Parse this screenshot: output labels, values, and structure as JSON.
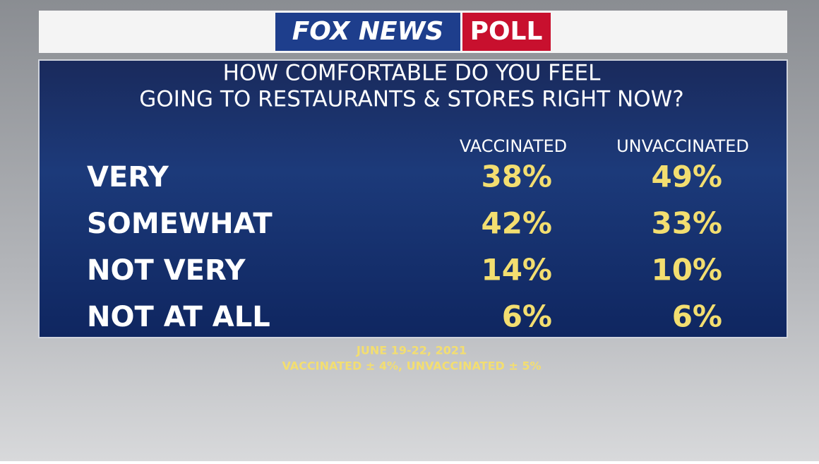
{
  "header": {
    "brand": "FOX NEWS",
    "badge": "POLL"
  },
  "title": [
    "HOW COMFORTABLE DO YOU FEEL",
    "GOING TO RESTAURANTS & STORES RIGHT NOW?"
  ],
  "table": {
    "columns": [
      "VACCINATED",
      "UNVACCINATED"
    ],
    "rows": [
      {
        "label": "VERY",
        "values": [
          "38%",
          "49%"
        ]
      },
      {
        "label": "SOMEWHAT",
        "values": [
          "42%",
          "33%"
        ]
      },
      {
        "label": "NOT VERY",
        "values": [
          "14%",
          "10%"
        ]
      },
      {
        "label": "NOT AT ALL",
        "values": [
          "6%",
          "6%"
        ]
      }
    ]
  },
  "footer": [
    "JUNE 19-22, 2021",
    "VACCINATED ± 4%, UNVACCINATED ± 5%"
  ]
}
